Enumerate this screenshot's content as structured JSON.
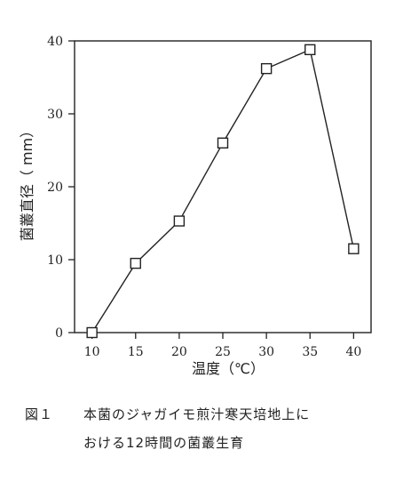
{
  "chart_data": {
    "type": "line",
    "x": [
      10,
      15,
      20,
      25,
      30,
      35,
      40
    ],
    "y": [
      0,
      9.5,
      15.3,
      26,
      36.2,
      38.8,
      11.5
    ],
    "xticks": [
      "10",
      "15",
      "20",
      "25",
      "30",
      "35",
      "40"
    ],
    "yticks": [
      "0",
      "10",
      "20",
      "30",
      "40"
    ],
    "xlabel": "温度（℃）",
    "ylabel": "菌叢直径（ mm）",
    "xlim": [
      8,
      42
    ],
    "ylim": [
      0,
      40
    ],
    "marker": "open-square",
    "grid": false,
    "line_color": "#222222"
  },
  "caption": {
    "figure_number": "図１",
    "line1": "本菌のジャガイモ煎汁寒天培地上に",
    "line2": "おける12時間の菌叢生育"
  }
}
